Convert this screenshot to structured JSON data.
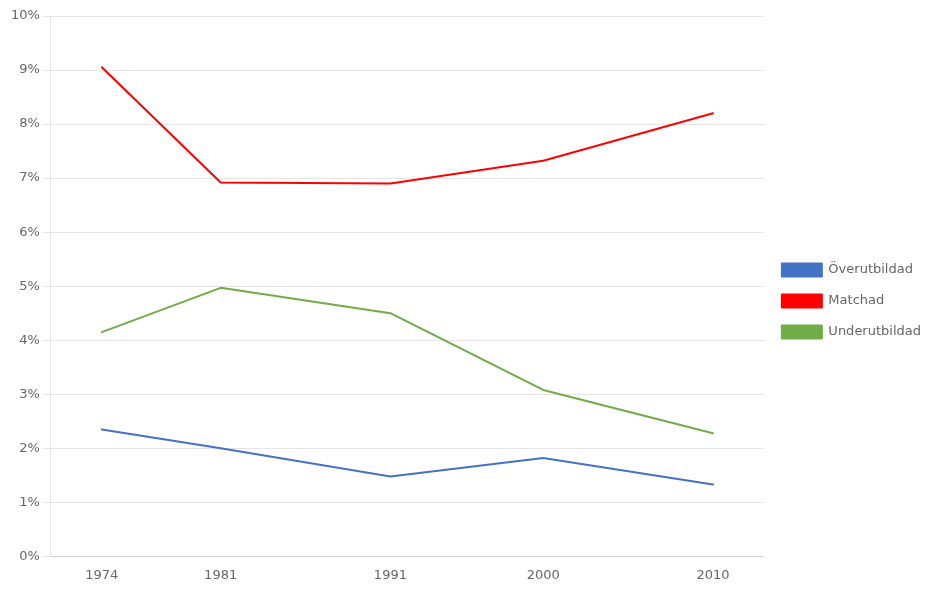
{
  "chart_data": {
    "type": "line",
    "x": [
      1974,
      1981,
      1991,
      2000,
      2010
    ],
    "series": [
      {
        "name": "Överutbildad",
        "color": "#4472C4",
        "values": [
          0.0235,
          0.02,
          0.0148,
          0.0182,
          0.0133
        ]
      },
      {
        "name": "Matchad",
        "color": "#FF0000",
        "values": [
          0.0905,
          0.0692,
          0.069,
          0.0732,
          0.082
        ]
      },
      {
        "name": "Underutbildad",
        "color": "#70AD47",
        "values": [
          0.0415,
          0.0497,
          0.045,
          0.0308,
          0.0228
        ]
      }
    ],
    "xlim": [
      1971,
      2013
    ],
    "xticks": [
      1974,
      1981,
      1991,
      2000,
      2010
    ],
    "ylim": [
      0.0,
      0.1
    ],
    "yticks": [
      {
        "value": 0.0,
        "label": "0%"
      },
      {
        "value": 0.01,
        "label": "1%"
      },
      {
        "value": 0.02,
        "label": "2%"
      },
      {
        "value": 0.03,
        "label": "3%"
      },
      {
        "value": 0.04,
        "label": "4%"
      },
      {
        "value": 0.05,
        "label": "5%"
      },
      {
        "value": 0.06,
        "label": "6%"
      },
      {
        "value": 0.07,
        "label": "7%"
      },
      {
        "value": 0.08,
        "label": "8%"
      },
      {
        "value": 0.09,
        "label": "9%"
      },
      {
        "value": 0.1,
        "label": "10%"
      }
    ],
    "grid": "y",
    "legend": "right"
  }
}
